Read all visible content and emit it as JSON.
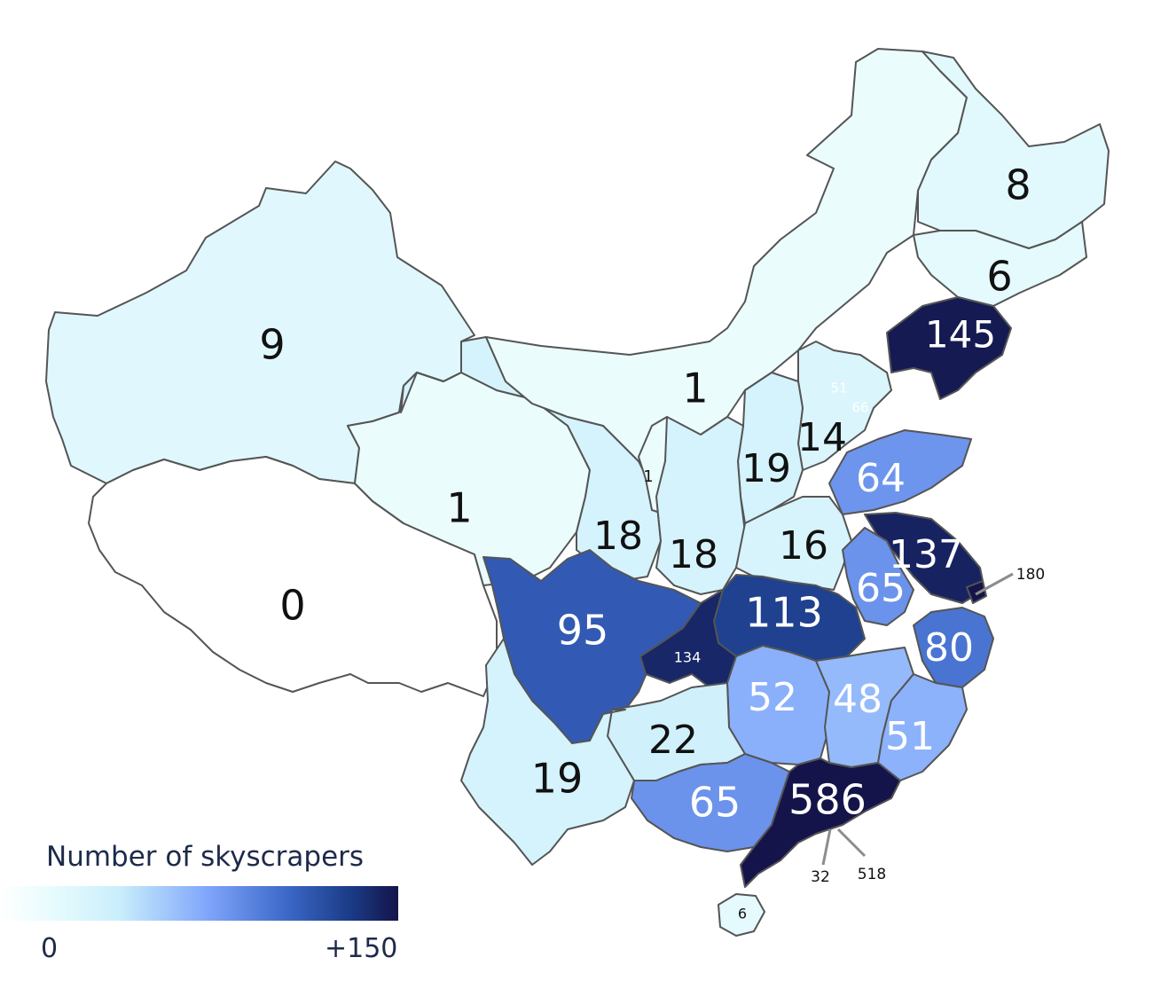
{
  "legend": {
    "title": "Number of skyscrapers",
    "min_label": "0",
    "max_label": "+150",
    "scale_max": 150,
    "gradient_colors": [
      "#ffffff",
      "#e6fbfd",
      "#c9eefb",
      "#80a6fb",
      "#3c68c8",
      "#1b3b86",
      "#14144a"
    ]
  },
  "regions": [
    {
      "value": 9,
      "label": "9"
    },
    {
      "value": 0,
      "label": "0"
    },
    {
      "value": 1,
      "label": "1"
    },
    {
      "value": 1,
      "label": "1"
    },
    {
      "value": 1,
      "label": "1"
    },
    {
      "value": 8,
      "label": "8"
    },
    {
      "value": 6,
      "label": "6"
    },
    {
      "value": 145,
      "label": "145"
    },
    {
      "value": 51,
      "label": "51"
    },
    {
      "value": 66,
      "label": "66"
    },
    {
      "value": 14,
      "label": "14"
    },
    {
      "value": 19,
      "label": "19"
    },
    {
      "value": 64,
      "label": "64"
    },
    {
      "value": 18,
      "label": "18"
    },
    {
      "value": 18,
      "label": "18"
    },
    {
      "value": 16,
      "label": "16"
    },
    {
      "value": 137,
      "label": "137"
    },
    {
      "value": 180,
      "label": "180"
    },
    {
      "value": 65,
      "label": "65"
    },
    {
      "value": 95,
      "label": "95"
    },
    {
      "value": 113,
      "label": "113"
    },
    {
      "value": 134,
      "label": "134"
    },
    {
      "value": 80,
      "label": "80"
    },
    {
      "value": 52,
      "label": "52"
    },
    {
      "value": 48,
      "label": "48"
    },
    {
      "value": 51,
      "label": "51"
    },
    {
      "value": 22,
      "label": "22"
    },
    {
      "value": 19,
      "label": "19"
    },
    {
      "value": 65,
      "label": "65"
    },
    {
      "value": 586,
      "label": "586"
    },
    {
      "value": 32,
      "label": "32"
    },
    {
      "value": 518,
      "label": "518"
    },
    {
      "value": 6,
      "label": "6"
    }
  ]
}
